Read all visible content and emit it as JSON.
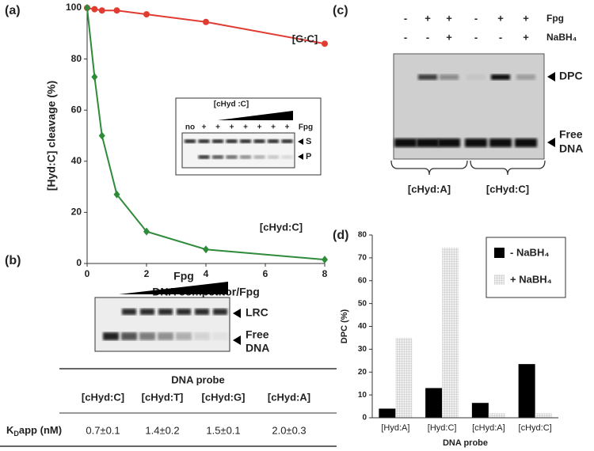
{
  "labels": {
    "a": "(a)",
    "b": "(b)",
    "c": "(c)",
    "d": "(d)"
  },
  "chart_data": [
    {
      "type": "line",
      "x_label": "DNA competitor/Fpg",
      "y_label": "[Hyd:C] cleavage (%)",
      "x": [
        0,
        0.25,
        0.5,
        1,
        2,
        4,
        8
      ],
      "xlim": [
        0,
        8
      ],
      "xticks": [
        0,
        2,
        4,
        6,
        8
      ],
      "ylim": [
        0,
        100
      ],
      "yticks": [
        0,
        20,
        40,
        60,
        80,
        100
      ],
      "series": [
        {
          "name": "[G:C]",
          "color": "#e03c31",
          "marker": "circle",
          "values": [
            100,
            99.5,
            99,
            99,
            97.5,
            94.5,
            86
          ]
        },
        {
          "name": "[cHyd:C]",
          "color": "#2e8b3a",
          "marker": "diamond",
          "values": [
            100,
            73,
            50,
            27,
            12.5,
            5.5,
            1.5
          ]
        }
      ]
    },
    {
      "type": "bar",
      "x_label": "DNA probe",
      "y_label": "DPC (%)",
      "categories": [
        "[Hyd:A]",
        "[Hyd:C]",
        "[cHyd:A]",
        "[cHyd:C]"
      ],
      "category_colors": [
        "#3c5a9a",
        "#2e8b3a",
        "#3c5a9a",
        "#2e8b3a"
      ],
      "ylim": [
        0,
        80
      ],
      "yticks": [
        0,
        10,
        20,
        30,
        40,
        50,
        60,
        70,
        80
      ],
      "legend": "upper right",
      "series": [
        {
          "name": "- NaBH₄",
          "color": "#000000",
          "values": [
            4,
            13,
            6.5,
            23.5
          ]
        },
        {
          "name": "+ NaBH₄",
          "color": "#dcdcdc",
          "hatch": true,
          "values": [
            35,
            74.5,
            2,
            2
          ]
        }
      ]
    }
  ],
  "inset_a": {
    "title": "[cHyd :C]",
    "title_color": "#2e8b3a",
    "lane_labels": [
      "no",
      "+",
      "+",
      "+",
      "+",
      "+",
      "+",
      "+"
    ],
    "enzyme": "Fpg",
    "bands": [
      "S",
      "P"
    ]
  },
  "gel_b": {
    "enzyme": "Fpg",
    "band": "LRC",
    "free_dna": [
      "Free",
      "DNA"
    ]
  },
  "table_b": {
    "header": "DNA probe",
    "columns": [
      "[cHyd:C]",
      "[cHyd:T]",
      "[cHyd:G]",
      "[cHyd:A]"
    ],
    "column_colors": [
      "#2e8b3a",
      "#222222",
      "#222222",
      "#3c5a9a"
    ],
    "row_label": {
      "main": "K",
      "sub": "D",
      "rest": "app (nM)"
    },
    "values": [
      "0.7±0.1",
      "1.4±0.2",
      "1.5±0.1",
      "2.0±0.3"
    ]
  },
  "gel_c": {
    "rows": [
      {
        "label": "Fpg",
        "signs": [
          "-",
          "+",
          "+",
          "-",
          "+",
          "+"
        ]
      },
      {
        "label": "NaBH₄",
        "signs": [
          "-",
          "-",
          "+",
          "-",
          "-",
          "+"
        ]
      }
    ],
    "band": "DPC",
    "free_dna": [
      "Free",
      "DNA"
    ],
    "groups": [
      "[cHyd:A]",
      "[cHyd:C]"
    ],
    "group_colors": [
      "#3c5a9a",
      "#2e8b3a"
    ]
  }
}
